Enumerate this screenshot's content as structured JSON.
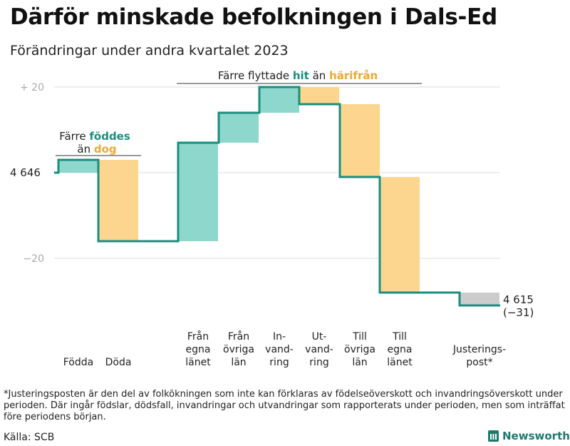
{
  "title": "Därför minskade befolkningen i Dals-Ed",
  "subtitle": "Förändringar under andra kvartalet 2023",
  "colors": {
    "line": "#1a8e7e",
    "positive": "#8ed7cc",
    "negative": "#fcd68e",
    "adjustment": "#cccccc",
    "grid": "#dddddd",
    "tick": "#aaaaaa",
    "hit_text": "#1a8e7e",
    "harifran_text": "#f0a830"
  },
  "chart_data": {
    "type": "waterfall",
    "baseline": 4646,
    "start_label": "4 646",
    "ylim": [
      -40,
      22
    ],
    "yticks": [
      {
        "value": 20,
        "label": "+  20"
      },
      {
        "value": -20,
        "label": "−20"
      }
    ],
    "steps": [
      {
        "name": "Födda",
        "label_lines": [
          "Födda"
        ],
        "change": 3,
        "kind": "positive"
      },
      {
        "name": "Döda",
        "label_lines": [
          "Döda"
        ],
        "change": -19,
        "kind": "negative"
      },
      {
        "name": "Från egna länet",
        "label_lines": [
          "Från",
          "egna",
          "länet"
        ],
        "change": 23,
        "kind": "positive"
      },
      {
        "name": "Från övriga län",
        "label_lines": [
          "Från",
          "övriga",
          "län"
        ],
        "change": 7,
        "kind": "positive"
      },
      {
        "name": "Invandring",
        "label_lines": [
          "In-",
          "vand-",
          "ring"
        ],
        "change": 6,
        "kind": "positive"
      },
      {
        "name": "Utvandring",
        "label_lines": [
          "Ut-",
          "vand-",
          "ring"
        ],
        "change": -4,
        "kind": "negative"
      },
      {
        "name": "Till övriga län",
        "label_lines": [
          "Till",
          "övriga",
          "län"
        ],
        "change": -17,
        "kind": "negative"
      },
      {
        "name": "Till egna länet",
        "label_lines": [
          "Till",
          "egna",
          "länet"
        ],
        "change": -27,
        "kind": "negative"
      },
      {
        "name": "Justeringspost*",
        "label_lines": [
          "Justerings-",
          "post*"
        ],
        "change": -3,
        "kind": "adjustment"
      }
    ],
    "end_value": 4615,
    "end_label": "4 615",
    "end_change": "(−31)",
    "annotations": {
      "births": {
        "line1": "Färre",
        "word1": "föddes",
        "line2": "än",
        "word2": "dog"
      },
      "moves": {
        "prefix": "Färre flyttade",
        "word1": "hit",
        "middle": "än",
        "word2": "härifrån"
      }
    }
  },
  "footnote": "*Justeringsposten är den del av folkökningen som inte kan förklaras av födelseöverskott och invandringsöverskott under perioden. Där ingår födslar, dödsfall, invandringar och utvandringar som rapporterats under perioden, men som inträffat före periodens början.",
  "source": "Källa: SCB",
  "brand": "Newsworthy"
}
